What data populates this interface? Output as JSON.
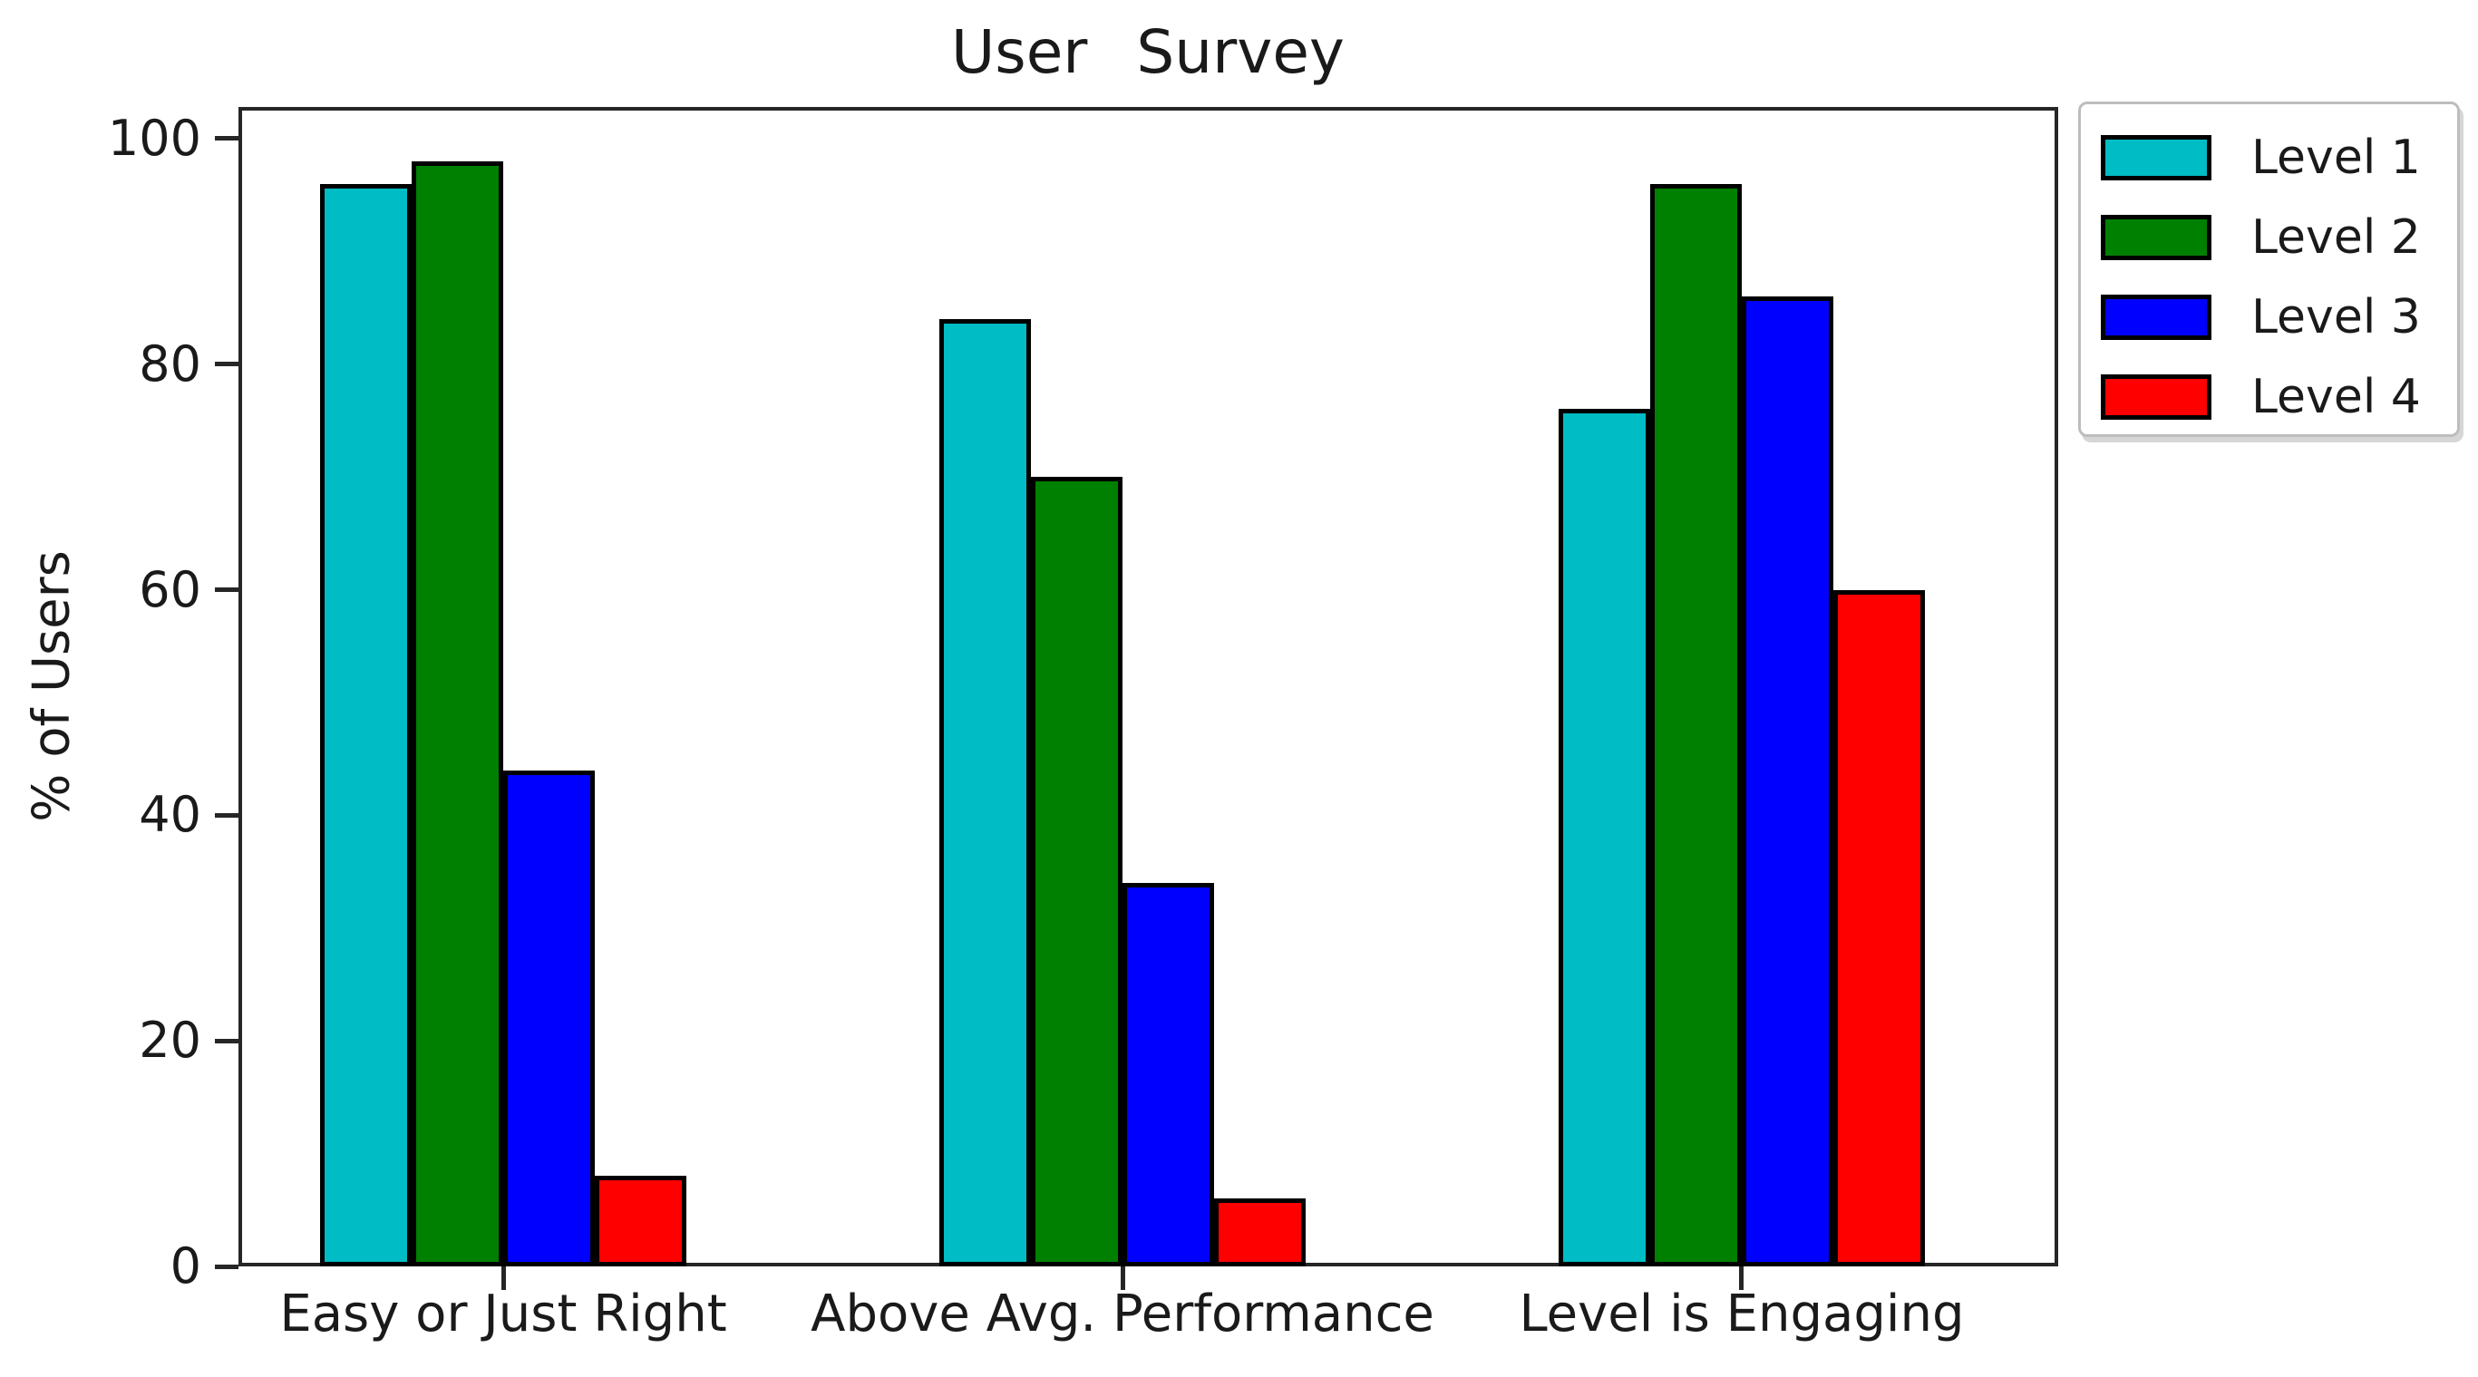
{
  "figure": {
    "background": "#ffffff"
  },
  "chart_data": {
    "type": "bar",
    "title": "User Survey",
    "xlabel": "",
    "ylabel": "% of Users",
    "categories": [
      "Easy or Just Right",
      "Above Avg. Performance",
      "Level is Engaging"
    ],
    "series": [
      {
        "name": "Level 1",
        "color": "#00bcc4",
        "values": [
          96,
          84,
          76
        ]
      },
      {
        "name": "Level 2",
        "color": "#008000",
        "values": [
          98,
          70,
          96
        ]
      },
      {
        "name": "Level 3",
        "color": "#0000ff",
        "values": [
          44,
          34,
          86
        ]
      },
      {
        "name": "Level 4",
        "color": "#ff0000",
        "values": [
          8,
          6,
          60
        ]
      }
    ],
    "yticks": [
      0,
      20,
      40,
      60,
      80,
      100
    ],
    "ylim": [
      0,
      102.8
    ],
    "grid": false,
    "bar_edge_color": "#000000",
    "axis_color": "#262626",
    "text_color": "#1a1a1a",
    "legend": {
      "position": "upper-right-outside",
      "entries": [
        "Level 1",
        "Level 2",
        "Level 3",
        "Level 4"
      ]
    }
  }
}
